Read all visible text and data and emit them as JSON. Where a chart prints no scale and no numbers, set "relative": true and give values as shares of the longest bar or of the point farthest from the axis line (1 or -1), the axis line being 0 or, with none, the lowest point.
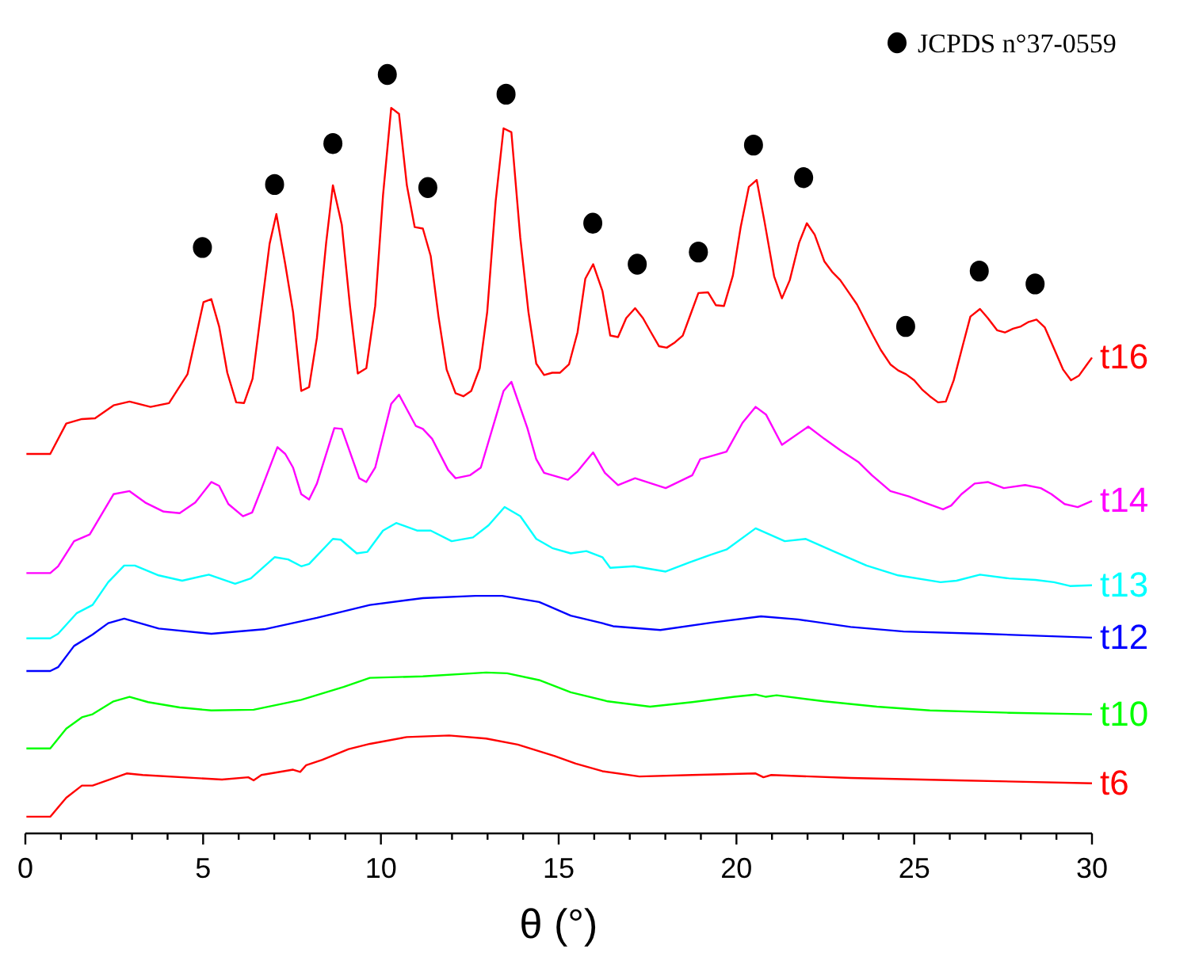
{
  "chart_data": {
    "type": "line",
    "xlabel": "θ (°)",
    "relative": true,
    "legend": "top right",
    "grid": false,
    "tick_labels": "x",
    "marker": "none",
    "line_style": "solid",
    "xlim": [
      0,
      30
    ],
    "xticks": [
      0,
      {
        "value": 1,
        "label": null
      },
      {
        "value": 2,
        "label": null
      },
      {
        "value": 3,
        "label": null
      },
      {
        "value": 4,
        "label": null
      },
      5,
      {
        "value": 6,
        "label": null
      },
      {
        "value": 7,
        "label": null
      },
      {
        "value": 8,
        "label": null
      },
      {
        "value": 9,
        "label": null
      },
      10,
      {
        "value": 11,
        "label": null
      },
      {
        "value": 12,
        "label": null
      },
      {
        "value": 13,
        "label": null
      },
      {
        "value": 14,
        "label": null
      },
      15,
      {
        "value": 16,
        "label": null
      },
      {
        "value": 17,
        "label": null
      },
      {
        "value": 18,
        "label": null
      },
      {
        "value": 19,
        "label": null
      },
      20,
      {
        "value": 21,
        "label": null
      },
      {
        "value": 22,
        "label": null
      },
      {
        "value": 23,
        "label": null
      },
      {
        "value": 24,
        "label": null
      },
      25,
      {
        "value": 26,
        "label": null
      },
      {
        "value": 27,
        "label": null
      },
      {
        "value": 28,
        "label": null
      },
      {
        "value": 29,
        "label": null
      },
      30
    ],
    "series": [
      {
        "name": "t6",
        "color": "#ff0000",
        "x": [
          0.03,
          0.7,
          1.15,
          1.59,
          1.89,
          2.85,
          3.3,
          5.53,
          6.27,
          6.42,
          6.64,
          7.53,
          7.73,
          7.9,
          8.35,
          9.09,
          9.69,
          10.73,
          11.92,
          12.96,
          13.85,
          14.89,
          15.48,
          16.23,
          17.27,
          18.76,
          20.54,
          20.76,
          20.98,
          23.21,
          26.19,
          30
        ],
        "values": [
          0.022,
          0.022,
          0.047,
          0.063,
          0.063,
          0.079,
          0.077,
          0.071,
          0.074,
          0.07,
          0.077,
          0.084,
          0.081,
          0.09,
          0.097,
          0.111,
          0.118,
          0.127,
          0.129,
          0.125,
          0.117,
          0.102,
          0.092,
          0.082,
          0.075,
          0.077,
          0.079,
          0.074,
          0.077,
          0.073,
          0.07,
          0.066
        ]
      },
      {
        "name": "t10",
        "color": "#00ff00",
        "x": [
          0.03,
          0.7,
          1.15,
          1.59,
          1.89,
          2.48,
          2.93,
          3.45,
          4.34,
          5.23,
          6.42,
          7.76,
          8.95,
          9.69,
          11.18,
          12.96,
          13.55,
          14.45,
          15.34,
          16.38,
          17.57,
          18.76,
          19.94,
          20.54,
          20.83,
          21.13,
          22.47,
          23.95,
          25.44,
          27.67,
          30
        ],
        "values": [
          0.112,
          0.112,
          0.138,
          0.153,
          0.157,
          0.174,
          0.18,
          0.173,
          0.166,
          0.162,
          0.163,
          0.176,
          0.193,
          0.205,
          0.207,
          0.212,
          0.211,
          0.202,
          0.186,
          0.174,
          0.167,
          0.173,
          0.18,
          0.183,
          0.18,
          0.182,
          0.174,
          0.167,
          0.162,
          0.159,
          0.157
        ]
      },
      {
        "name": "t12",
        "color": "#0000ff",
        "x": [
          0.03,
          0.7,
          0.92,
          1.37,
          1.89,
          2.33,
          2.78,
          3.75,
          5.23,
          6.72,
          8.2,
          9.69,
          11.18,
          12.66,
          13.41,
          14.45,
          15.34,
          16.23,
          16.53,
          17.86,
          19.35,
          20.69,
          21.73,
          23.21,
          24.7,
          26.93,
          30
        ],
        "values": [
          0.214,
          0.214,
          0.219,
          0.247,
          0.262,
          0.277,
          0.283,
          0.27,
          0.263,
          0.269,
          0.284,
          0.301,
          0.31,
          0.313,
          0.313,
          0.305,
          0.287,
          0.277,
          0.273,
          0.268,
          0.278,
          0.286,
          0.282,
          0.272,
          0.266,
          0.263,
          0.258
        ]
      },
      {
        "name": "t13",
        "color": "#00ffff",
        "x": [
          0.03,
          0.7,
          0.92,
          1.44,
          1.89,
          2.33,
          2.78,
          3.08,
          3.75,
          4.41,
          5.16,
          5.9,
          6.34,
          7.01,
          7.39,
          7.76,
          7.98,
          8.65,
          8.87,
          9.32,
          9.62,
          10.06,
          10.43,
          11.03,
          11.4,
          11.99,
          12.59,
          13.03,
          13.48,
          13.92,
          14.37,
          14.82,
          15.34,
          15.78,
          16.23,
          16.45,
          17.12,
          18.01,
          18.68,
          19.27,
          19.72,
          20.54,
          21.36,
          21.95,
          22.77,
          23.66,
          24.55,
          25.74,
          26.19,
          26.85,
          27.67,
          28.41,
          28.93,
          29.38,
          30
        ],
        "values": [
          0.257,
          0.257,
          0.263,
          0.29,
          0.301,
          0.331,
          0.353,
          0.353,
          0.34,
          0.333,
          0.341,
          0.329,
          0.336,
          0.364,
          0.361,
          0.352,
          0.355,
          0.388,
          0.387,
          0.369,
          0.371,
          0.399,
          0.409,
          0.399,
          0.399,
          0.385,
          0.39,
          0.406,
          0.43,
          0.418,
          0.388,
          0.376,
          0.369,
          0.372,
          0.364,
          0.35,
          0.352,
          0.345,
          0.357,
          0.367,
          0.374,
          0.402,
          0.385,
          0.388,
          0.371,
          0.353,
          0.34,
          0.331,
          0.333,
          0.341,
          0.336,
          0.334,
          0.331,
          0.326,
          0.327
        ]
      },
      {
        "name": "t14",
        "color": "#ff00ff",
        "x": [
          0.03,
          0.7,
          0.92,
          1.37,
          1.81,
          2.48,
          2.93,
          3.37,
          3.89,
          4.34,
          4.78,
          5.23,
          5.45,
          5.71,
          6.12,
          6.38,
          6.64,
          7.09,
          7.31,
          7.53,
          7.76,
          7.98,
          8.2,
          8.69,
          8.9,
          9.39,
          9.59,
          9.84,
          10.29,
          10.51,
          10.98,
          11.18,
          11.44,
          11.89,
          12.1,
          12.51,
          12.81,
          13.45,
          13.67,
          14.12,
          14.37,
          14.59,
          15.26,
          15.53,
          15.97,
          16.3,
          16.67,
          17.15,
          18.01,
          18.76,
          18.98,
          19.2,
          19.72,
          20.17,
          20.54,
          20.83,
          21.28,
          22.02,
          22.47,
          22.92,
          23.44,
          23.81,
          24.33,
          24.85,
          25.29,
          25.81,
          26.04,
          26.33,
          26.7,
          27.07,
          27.52,
          28.12,
          28.56,
          28.86,
          29.23,
          29.6,
          30
        ],
        "values": [
          0.343,
          0.343,
          0.352,
          0.385,
          0.394,
          0.447,
          0.451,
          0.436,
          0.424,
          0.422,
          0.436,
          0.463,
          0.458,
          0.434,
          0.418,
          0.423,
          0.454,
          0.509,
          0.5,
          0.482,
          0.447,
          0.44,
          0.461,
          0.534,
          0.533,
          0.468,
          0.463,
          0.482,
          0.566,
          0.578,
          0.537,
          0.533,
          0.52,
          0.479,
          0.468,
          0.472,
          0.482,
          0.583,
          0.595,
          0.534,
          0.493,
          0.475,
          0.466,
          0.477,
          0.502,
          0.475,
          0.459,
          0.468,
          0.455,
          0.472,
          0.493,
          0.496,
          0.503,
          0.541,
          0.562,
          0.552,
          0.512,
          0.536,
          0.52,
          0.505,
          0.489,
          0.472,
          0.451,
          0.444,
          0.436,
          0.427,
          0.432,
          0.447,
          0.461,
          0.463,
          0.455,
          0.459,
          0.455,
          0.447,
          0.434,
          0.43,
          0.438
        ]
      },
      {
        "name": "t16",
        "color": "#ff0000",
        "x": [
          0.03,
          0.7,
          1.15,
          1.59,
          1.96,
          2.48,
          2.93,
          3.52,
          4.04,
          4.56,
          5.01,
          5.23,
          5.45,
          5.68,
          5.93,
          6.15,
          6.39,
          6.87,
          7.06,
          7.31,
          7.53,
          7.76,
          7.98,
          8.2,
          8.46,
          8.65,
          8.9,
          9.13,
          9.35,
          9.59,
          9.84,
          10.06,
          10.29,
          10.51,
          10.73,
          10.95,
          11.18,
          11.4,
          11.62,
          11.85,
          12.1,
          12.32,
          12.54,
          12.78,
          12.99,
          13.23,
          13.45,
          13.67,
          13.92,
          14.15,
          14.37,
          14.59,
          14.82,
          15.04,
          15.29,
          15.53,
          15.75,
          15.97,
          16.23,
          16.45,
          16.67,
          16.9,
          17.15,
          17.37,
          17.6,
          17.82,
          18.04,
          18.27,
          18.49,
          18.71,
          18.93,
          19.2,
          19.42,
          19.65,
          19.9,
          20.12,
          20.35,
          20.57,
          20.79,
          21.06,
          21.28,
          21.5,
          21.76,
          21.98,
          22.2,
          22.47,
          22.69,
          22.92,
          23.17,
          23.39,
          23.61,
          23.84,
          24.06,
          24.33,
          24.55,
          24.77,
          25.0,
          25.22,
          25.44,
          25.67,
          25.89,
          26.11,
          26.36,
          26.58,
          26.85,
          27.07,
          27.33,
          27.55,
          27.78,
          28.0,
          28.22,
          28.44,
          28.67,
          28.93,
          29.19,
          29.41,
          29.63,
          29.86,
          30
        ],
        "values": [
          0.5,
          0.5,
          0.54,
          0.546,
          0.547,
          0.564,
          0.569,
          0.562,
          0.567,
          0.605,
          0.7,
          0.704,
          0.668,
          0.607,
          0.568,
          0.567,
          0.599,
          0.777,
          0.816,
          0.75,
          0.687,
          0.583,
          0.588,
          0.653,
          0.778,
          0.854,
          0.802,
          0.695,
          0.606,
          0.613,
          0.695,
          0.841,
          0.956,
          0.948,
          0.854,
          0.799,
          0.797,
          0.761,
          0.681,
          0.611,
          0.58,
          0.576,
          0.583,
          0.613,
          0.687,
          0.834,
          0.929,
          0.924,
          0.785,
          0.687,
          0.619,
          0.604,
          0.607,
          0.607,
          0.618,
          0.66,
          0.731,
          0.75,
          0.715,
          0.656,
          0.654,
          0.679,
          0.692,
          0.679,
          0.66,
          0.642,
          0.64,
          0.647,
          0.656,
          0.684,
          0.712,
          0.713,
          0.696,
          0.695,
          0.735,
          0.799,
          0.852,
          0.861,
          0.806,
          0.734,
          0.705,
          0.729,
          0.778,
          0.804,
          0.789,
          0.754,
          0.74,
          0.729,
          0.712,
          0.697,
          0.677,
          0.656,
          0.637,
          0.618,
          0.61,
          0.605,
          0.597,
          0.585,
          0.576,
          0.568,
          0.569,
          0.597,
          0.642,
          0.681,
          0.691,
          0.679,
          0.663,
          0.66,
          0.665,
          0.668,
          0.674,
          0.677,
          0.667,
          0.639,
          0.611,
          0.597,
          0.603,
          0.618,
          0.627
        ]
      },
      {
        "name": "JCPDS n°37-0559",
        "type": "scatter",
        "marker": "circle",
        "color": "#000000",
        "x": [
          4.98,
          7.01,
          8.65,
          10.18,
          11.32,
          13.52,
          15.96,
          17.21,
          18.93,
          20.48,
          21.89,
          24.76,
          26.83,
          28.4
        ],
        "values": [
          0.772,
          0.855,
          0.909,
          1,
          0.851,
          0.974,
          0.804,
          0.75,
          0.766,
          0.907,
          0.864,
          0.668,
          0.741,
          0.724
        ]
      }
    ]
  }
}
